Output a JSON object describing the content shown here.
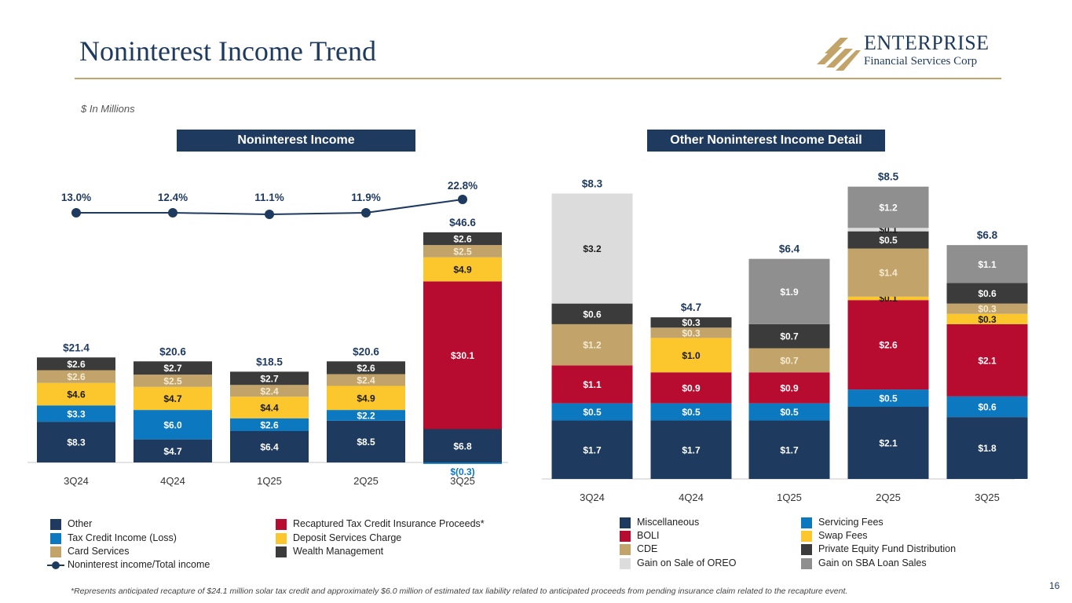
{
  "header": {
    "title": "Noninterest Income Trend",
    "units_note": "$ In Millions",
    "logo_name": "ENTERPRISE",
    "logo_sub": "Financial Services Corp"
  },
  "banners": {
    "left": "Noninterest Income",
    "right": "Other Noninterest Income Detail"
  },
  "colors": {
    "navy": "#1e3a5f",
    "blue": "#0b78bf",
    "tan": "#c2a46b",
    "yellow": "#fcc72d",
    "red": "#b70c2f",
    "dark": "#3b3b3b",
    "lightgray": "#dcdcdc",
    "midgray": "#8f8f8f"
  },
  "chart_data": [
    {
      "type": "bar",
      "title": "Noninterest Income",
      "stacked": true,
      "categories": [
        "3Q24",
        "4Q24",
        "1Q25",
        "2Q25",
        "3Q25"
      ],
      "series": [
        {
          "name": "Other",
          "color": "#1e3a5f",
          "values": [
            8.3,
            4.7,
            6.4,
            8.5,
            6.8
          ],
          "labels": [
            "$8.3",
            "$4.7",
            "$6.4",
            "$8.5",
            "$6.8"
          ]
        },
        {
          "name": "Tax Credit Income (Loss)",
          "color": "#0b78bf",
          "values": [
            3.3,
            6.0,
            2.6,
            2.2,
            -0.3
          ],
          "labels": [
            "$3.3",
            "$6.0",
            "$2.6",
            "$2.2",
            "$(0.3)"
          ]
        },
        {
          "name": "Recaptured Tax Credit Insurance Proceeds*",
          "color": "#b70c2f",
          "values": [
            0,
            0,
            0,
            0,
            30.1
          ],
          "labels": [
            "",
            "",
            "",
            "",
            "$30.1"
          ]
        },
        {
          "name": "Deposit Services Charge",
          "color": "#fcc72d",
          "values": [
            4.6,
            4.7,
            4.4,
            4.9,
            4.9
          ],
          "labels": [
            "$4.6",
            "$4.7",
            "$4.4",
            "$4.9",
            "$4.9"
          ]
        },
        {
          "name": "Card Services",
          "color": "#c2a46b",
          "values": [
            2.6,
            2.5,
            2.4,
            2.4,
            2.5
          ],
          "labels": [
            "$2.6",
            "$2.5",
            "$2.4",
            "$2.4",
            "$2.5"
          ]
        },
        {
          "name": "Wealth Management",
          "color": "#3b3b3b",
          "values": [
            2.6,
            2.7,
            2.7,
            2.6,
            2.6
          ],
          "labels": [
            "$2.6",
            "$2.7",
            "$2.7",
            "$2.6",
            "$2.6"
          ]
        }
      ],
      "totals": [
        21.4,
        20.6,
        18.5,
        20.6,
        46.6
      ],
      "total_labels": [
        "$21.4",
        "$20.6",
        "$18.5",
        "$20.6",
        "$46.6"
      ],
      "line": {
        "name": "Noninterest income/Total income",
        "values": [
          13.0,
          12.4,
          11.1,
          11.9,
          22.8
        ],
        "labels": [
          "13.0%",
          "12.4%",
          "11.1%",
          "11.9%",
          "22.8%"
        ]
      },
      "legend": [
        {
          "name": "Other",
          "color": "#1e3a5f"
        },
        {
          "name": "Tax Credit Income (Loss)",
          "color": "#0b78bf"
        },
        {
          "name": "Card Services",
          "color": "#c2a46b"
        },
        {
          "name": "Noninterest income/Total income",
          "color": "#1e3a5f"
        },
        {
          "name": "Recaptured Tax Credit Insurance Proceeds*",
          "color": "#b70c2f"
        },
        {
          "name": "Deposit Services Charge",
          "color": "#fcc72d"
        },
        {
          "name": "Wealth Management",
          "color": "#3b3b3b"
        }
      ]
    },
    {
      "type": "bar",
      "title": "Other Noninterest Income Detail",
      "stacked": true,
      "categories": [
        "3Q24",
        "4Q24",
        "1Q25",
        "2Q25",
        "3Q25"
      ],
      "series": [
        {
          "name": "Miscellaneous",
          "color": "#1e3a5f",
          "values": [
            1.7,
            1.7,
            1.7,
            2.1,
            1.8
          ],
          "labels": [
            "$1.7",
            "$1.7",
            "$1.7",
            "$2.1",
            "$1.8"
          ]
        },
        {
          "name": "Servicing Fees",
          "color": "#0b78bf",
          "values": [
            0.5,
            0.5,
            0.5,
            0.5,
            0.6
          ],
          "labels": [
            "$0.5",
            "$0.5",
            "$0.5",
            "$0.5",
            "$0.6"
          ]
        },
        {
          "name": "BOLI",
          "color": "#b70c2f",
          "values": [
            1.1,
            0.9,
            0.9,
            2.6,
            2.1
          ],
          "labels": [
            "$1.1",
            "$0.9",
            "$0.9",
            "$2.6",
            "$2.1"
          ]
        },
        {
          "name": "Swap Fees",
          "color": "#fcc72d",
          "values": [
            0,
            1.0,
            0,
            0.1,
            0.3
          ],
          "labels": [
            "",
            "$1.0",
            "",
            "$0.1",
            "$0.3"
          ]
        },
        {
          "name": "CDE",
          "color": "#c2a46b",
          "values": [
            1.2,
            0.3,
            0.7,
            1.4,
            0.3
          ],
          "labels": [
            "$1.2",
            "$0.3",
            "$0.7",
            "$1.4",
            "$0.3"
          ]
        },
        {
          "name": "Private Equity Fund Distribution",
          "color": "#3b3b3b",
          "values": [
            0.6,
            0.3,
            0.7,
            0.5,
            0.6
          ],
          "labels": [
            "$0.6",
            "$0.3",
            "$0.7",
            "$0.5",
            "$0.6"
          ]
        },
        {
          "name": "Gain on Sale of OREO",
          "color": "#dcdcdc",
          "values": [
            3.2,
            0,
            0,
            0.1,
            0
          ],
          "labels": [
            "$3.2",
            "",
            "",
            "$0.1",
            ""
          ]
        },
        {
          "name": "Gain on SBA Loan Sales",
          "color": "#8f8f8f",
          "values": [
            0,
            0,
            1.9,
            1.2,
            1.1
          ],
          "labels": [
            "",
            "",
            "$1.9",
            "$1.2",
            "$1.1"
          ]
        }
      ],
      "totals": [
        8.3,
        4.7,
        6.4,
        8.5,
        6.8
      ],
      "total_labels": [
        "$8.3",
        "$4.7",
        "$6.4",
        "$8.5",
        "$6.8"
      ],
      "legend": [
        {
          "name": "Miscellaneous",
          "color": "#1e3a5f"
        },
        {
          "name": "BOLI",
          "color": "#b70c2f"
        },
        {
          "name": "CDE",
          "color": "#c2a46b"
        },
        {
          "name": "Gain on Sale of OREO",
          "color": "#dcdcdc"
        },
        {
          "name": "Servicing Fees",
          "color": "#0b78bf"
        },
        {
          "name": "Swap Fees",
          "color": "#fcc72d"
        },
        {
          "name": "Private Equity Fund Distribution",
          "color": "#3b3b3b"
        },
        {
          "name": "Gain on SBA Loan Sales",
          "color": "#8f8f8f"
        }
      ]
    }
  ],
  "footnote": "*Represents anticipated recapture of $24.1 million solar tax credit and approximately $6.0 million of estimated tax liability related to anticipated proceeds from pending insurance claim related to the recapture event.",
  "page_number": "16"
}
